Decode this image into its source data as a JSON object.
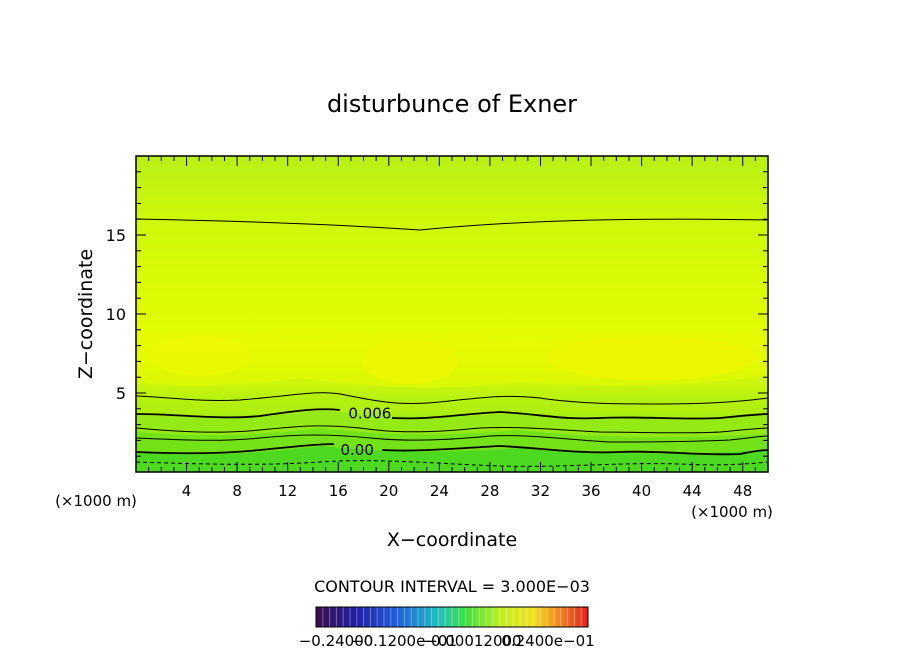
{
  "chart_data": {
    "type": "heatmap",
    "title": "disturbunce of Exner",
    "xlabel": "X−coordinate",
    "ylabel": "Z−coordinate",
    "x_unit": "(×1000 m)",
    "x_unit_right": "(×1000 m)",
    "xlim": [
      0,
      50
    ],
    "ylim": [
      0,
      20
    ],
    "x_ticks": [
      4,
      8,
      12,
      16,
      20,
      24,
      28,
      32,
      36,
      40,
      44,
      48
    ],
    "y_ticks": [
      5,
      10,
      15
    ],
    "contour_interval_text": "CONTOUR INTERVAL = 3.000E−03",
    "colorbar_labels": [
      "−0.24000",
      "−0.1200e−01",
      "−0.00012000",
      "0.2400e−01"
    ],
    "contour_labels": [
      {
        "text": "0.006",
        "x": 18.5,
        "z": 3.7
      },
      {
        "text": "0.00",
        "x": 17.5,
        "z": 1.4
      }
    ],
    "colors": {
      "top": "#b8f016",
      "upper": "#ccf80a",
      "mid": "#ddfc02",
      "core": "#f4f600",
      "lower": "#a8ee12",
      "low": "#66e01a",
      "bottom": "#30d028"
    }
  }
}
